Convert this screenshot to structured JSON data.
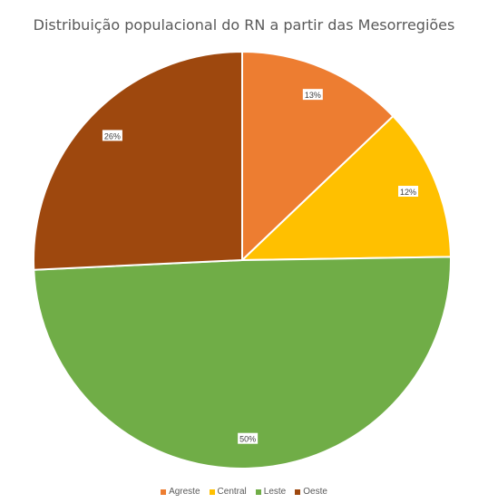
{
  "chart_data": {
    "type": "pie",
    "title": "Distribuição populacional do RN a partir das Mesorregiões",
    "categories": [
      "Agreste",
      "Central",
      "Leste",
      "Oeste"
    ],
    "values": [
      13,
      12,
      50,
      26
    ],
    "labels": [
      "13%",
      "12%",
      "50%",
      "26%"
    ],
    "colors": [
      "#ED7D31",
      "#FFC000",
      "#70AD47",
      "#9E480E"
    ],
    "legend": "bottom"
  }
}
